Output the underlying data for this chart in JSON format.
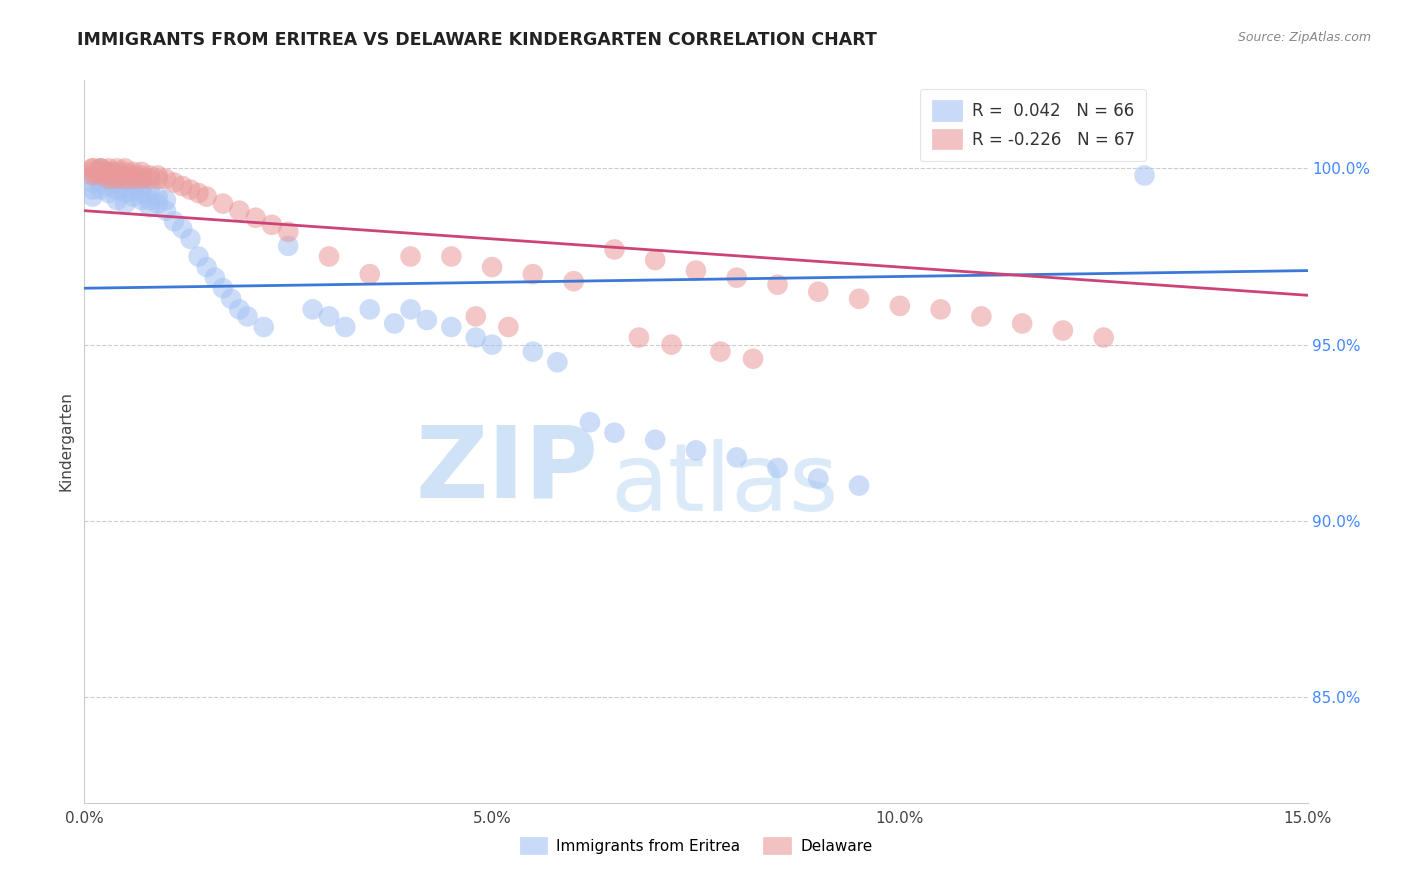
{
  "title": "IMMIGRANTS FROM ERITREA VS DELAWARE KINDERGARTEN CORRELATION CHART",
  "source_text": "Source: ZipAtlas.com",
  "ylabel": "Kindergarten",
  "xlim": [
    0.0,
    0.15
  ],
  "ylim": [
    0.82,
    1.025
  ],
  "xticks": [
    0.0,
    0.05,
    0.1,
    0.15
  ],
  "xticklabels": [
    "0.0%",
    "5.0%",
    "10.0%",
    "15.0%"
  ],
  "yticks_right": [
    1.0,
    0.95,
    0.9,
    0.85
  ],
  "yticklabels_right": [
    "100.0%",
    "95.0%",
    "90.0%",
    "85.0%"
  ],
  "blue_R": 0.042,
  "blue_N": 66,
  "pink_R": -0.226,
  "pink_N": 67,
  "blue_color": "#a4c2f4",
  "pink_color": "#ea9999",
  "blue_line_color": "#3c78d8",
  "pink_line_color": "#cc4477",
  "legend_label_blue": "Immigrants from Eritrea",
  "legend_label_pink": "Delaware",
  "watermark_zip": "ZIP",
  "watermark_atlas": "atlas",
  "blue_trend_x": [
    0.0,
    0.15
  ],
  "blue_trend_y": [
    0.966,
    0.971
  ],
  "pink_trend_x": [
    0.0,
    0.15
  ],
  "pink_trend_y": [
    0.988,
    0.964
  ],
  "blue_scatter_x": [
    0.001,
    0.001,
    0.001,
    0.001,
    0.002,
    0.002,
    0.002,
    0.002,
    0.003,
    0.003,
    0.003,
    0.003,
    0.004,
    0.004,
    0.004,
    0.004,
    0.005,
    0.005,
    0.005,
    0.005,
    0.006,
    0.006,
    0.006,
    0.007,
    0.007,
    0.007,
    0.008,
    0.008,
    0.008,
    0.009,
    0.009,
    0.01,
    0.01,
    0.011,
    0.012,
    0.013,
    0.014,
    0.015,
    0.016,
    0.017,
    0.018,
    0.019,
    0.02,
    0.022,
    0.025,
    0.028,
    0.03,
    0.032,
    0.035,
    0.038,
    0.04,
    0.042,
    0.045,
    0.048,
    0.05,
    0.055,
    0.058,
    0.062,
    0.065,
    0.07,
    0.075,
    0.08,
    0.085,
    0.09,
    0.095,
    0.13
  ],
  "blue_scatter_y": [
    0.998,
    0.996,
    0.994,
    0.992,
    1.0,
    0.998,
    0.996,
    0.994,
    0.999,
    0.997,
    0.995,
    0.993,
    0.998,
    0.996,
    0.994,
    0.991,
    0.997,
    0.995,
    0.993,
    0.99,
    0.996,
    0.994,
    0.992,
    0.995,
    0.993,
    0.991,
    0.994,
    0.991,
    0.989,
    0.992,
    0.99,
    0.991,
    0.988,
    0.985,
    0.983,
    0.98,
    0.975,
    0.972,
    0.969,
    0.966,
    0.963,
    0.96,
    0.958,
    0.955,
    0.978,
    0.96,
    0.958,
    0.955,
    0.96,
    0.956,
    0.96,
    0.957,
    0.955,
    0.952,
    0.95,
    0.948,
    0.945,
    0.928,
    0.925,
    0.923,
    0.92,
    0.918,
    0.915,
    0.912,
    0.91,
    0.998
  ],
  "pink_scatter_x": [
    0.001,
    0.001,
    0.001,
    0.001,
    0.002,
    0.002,
    0.002,
    0.002,
    0.003,
    0.003,
    0.003,
    0.003,
    0.004,
    0.004,
    0.004,
    0.004,
    0.005,
    0.005,
    0.005,
    0.005,
    0.006,
    0.006,
    0.006,
    0.007,
    0.007,
    0.007,
    0.008,
    0.008,
    0.009,
    0.009,
    0.01,
    0.011,
    0.012,
    0.013,
    0.014,
    0.015,
    0.017,
    0.019,
    0.021,
    0.023,
    0.025,
    0.03,
    0.035,
    0.04,
    0.045,
    0.05,
    0.055,
    0.06,
    0.065,
    0.07,
    0.075,
    0.08,
    0.085,
    0.09,
    0.095,
    0.1,
    0.105,
    0.11,
    0.115,
    0.12,
    0.125,
    0.048,
    0.052,
    0.068,
    0.072,
    0.078,
    0.082
  ],
  "pink_scatter_y": [
    1.0,
    1.0,
    0.999,
    0.998,
    1.0,
    1.0,
    0.999,
    0.998,
    1.0,
    0.999,
    0.998,
    0.997,
    1.0,
    0.999,
    0.998,
    0.997,
    1.0,
    0.999,
    0.998,
    0.997,
    0.999,
    0.998,
    0.997,
    0.999,
    0.998,
    0.997,
    0.998,
    0.997,
    0.998,
    0.997,
    0.997,
    0.996,
    0.995,
    0.994,
    0.993,
    0.992,
    0.99,
    0.988,
    0.986,
    0.984,
    0.982,
    0.975,
    0.97,
    0.975,
    0.975,
    0.972,
    0.97,
    0.968,
    0.977,
    0.974,
    0.971,
    0.969,
    0.967,
    0.965,
    0.963,
    0.961,
    0.96,
    0.958,
    0.956,
    0.954,
    0.952,
    0.958,
    0.955,
    0.952,
    0.95,
    0.948,
    0.946
  ]
}
